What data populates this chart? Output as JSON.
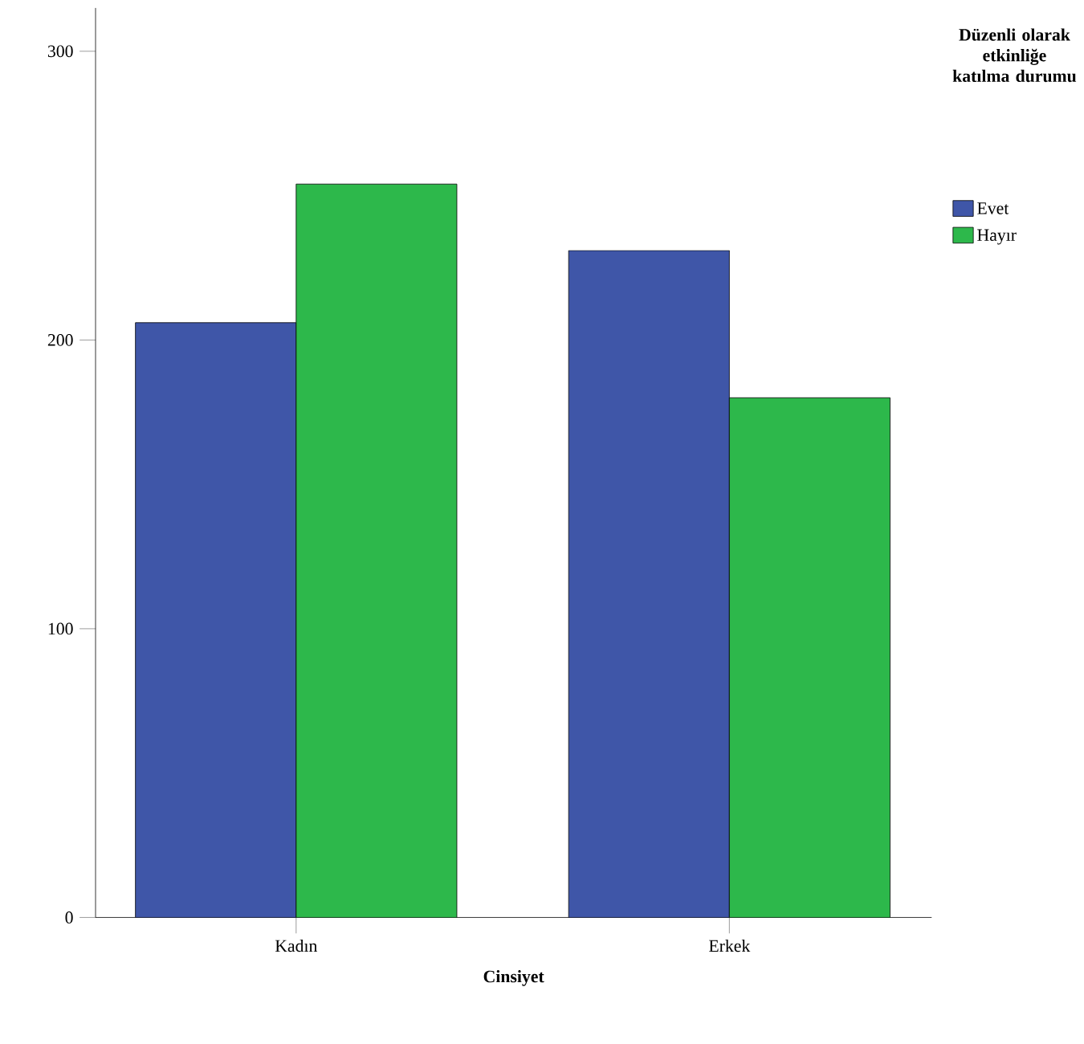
{
  "chart_data": {
    "type": "bar",
    "xlabel": "Cinsiyet",
    "legend_title": "Düzenli olarak etkinliğe katılma durumu",
    "categories": [
      "Kadın",
      "Erkek"
    ],
    "series": [
      {
        "name": "Evet",
        "color": "#3f56a8",
        "values": [
          206,
          231
        ]
      },
      {
        "name": "Hayır",
        "color": "#2db84b",
        "values": [
          254,
          180
        ]
      }
    ],
    "ylim": [
      0,
      315
    ],
    "yticks": [
      0,
      100,
      200,
      300
    ],
    "grid": false,
    "legend": "top right"
  }
}
